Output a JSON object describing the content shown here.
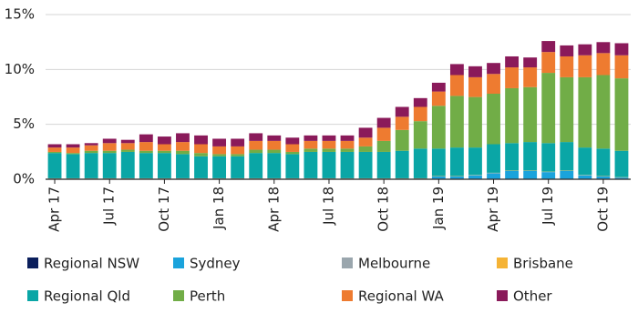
{
  "chart_data": {
    "type": "stacked_bar",
    "categories": [
      "Apr 17",
      null,
      null,
      "Jul 17",
      null,
      null,
      "Oct 17",
      null,
      null,
      "Jan 18",
      null,
      null,
      "Apr 18",
      null,
      null,
      "Jul 18",
      null,
      null,
      "Oct 18",
      null,
      null,
      "Jan 19",
      null,
      null,
      "Apr 19",
      null,
      null,
      "Jul 19",
      null,
      null,
      "Oct 19",
      null
    ],
    "ylim": [
      0,
      15
    ],
    "yticks": [
      {
        "value": 0,
        "label": "0%"
      },
      {
        "value": 5,
        "label": "5%"
      },
      {
        "value": 10,
        "label": "10%"
      },
      {
        "value": 15,
        "label": "15%"
      }
    ],
    "grid": true,
    "series": [
      {
        "name": "Regional NSW",
        "color": "#0b1f5c",
        "values": [
          0.05,
          0.05,
          0.05,
          0.05,
          0.05,
          0.05,
          0.05,
          0.05,
          0.05,
          0.05,
          0.05,
          0.05,
          0.05,
          0.05,
          0.05,
          0.05,
          0.05,
          0.05,
          0.05,
          0.05,
          0.05,
          0.05,
          0.05,
          0.05,
          0.05,
          0.05,
          0.05,
          0.05,
          0.05,
          0.05,
          0.05,
          0.05
        ]
      },
      {
        "name": "Sydney",
        "color": "#1aa3dc",
        "values": [
          0,
          0,
          0,
          0,
          0,
          0,
          0,
          0,
          0,
          0,
          0,
          0,
          0,
          0,
          0,
          0,
          0,
          0,
          0,
          0,
          0,
          0.2,
          0.2,
          0.3,
          0.5,
          0.7,
          0.7,
          0.6,
          0.7,
          0.3,
          0.2,
          0.1
        ]
      },
      {
        "name": "Melbourne",
        "color": "#9aa6ad",
        "values": [
          0.02,
          0.02,
          0.02,
          0.02,
          0.02,
          0.02,
          0.02,
          0.02,
          0.02,
          0.02,
          0.02,
          0.02,
          0.02,
          0.02,
          0.02,
          0.02,
          0.02,
          0.02,
          0.02,
          0.02,
          0.02,
          0.02,
          0.02,
          0.02,
          0.02,
          0.02,
          0.02,
          0.02,
          0.02,
          0.02,
          0.02,
          0.02
        ]
      },
      {
        "name": "Brisbane",
        "color": "#f5b335",
        "values": [
          0.02,
          0.02,
          0.02,
          0.02,
          0.02,
          0.02,
          0.02,
          0.02,
          0.02,
          0.02,
          0.02,
          0.02,
          0.02,
          0.02,
          0.02,
          0.02,
          0.02,
          0.02,
          0.02,
          0.02,
          0.02,
          0.02,
          0.02,
          0.02,
          0.02,
          0.02,
          0.02,
          0.02,
          0.02,
          0.02,
          0.02,
          0.02
        ]
      },
      {
        "name": "Regional Qld",
        "color": "#0aa6a6",
        "values": [
          2.3,
          2.2,
          2.3,
          2.3,
          2.4,
          2.3,
          2.3,
          2.2,
          2.0,
          2.0,
          2.0,
          2.3,
          2.3,
          2.2,
          2.4,
          2.4,
          2.4,
          2.4,
          2.4,
          2.5,
          2.7,
          2.5,
          2.6,
          2.5,
          2.6,
          2.5,
          2.6,
          2.6,
          2.6,
          2.5,
          2.5,
          2.4
        ]
      },
      {
        "name": "Perth",
        "color": "#71ad47",
        "values": [
          0.1,
          0.1,
          0.2,
          0.2,
          0.2,
          0.2,
          0.2,
          0.3,
          0.3,
          0.2,
          0.2,
          0.3,
          0.3,
          0.2,
          0.3,
          0.3,
          0.3,
          0.5,
          1.0,
          1.9,
          2.5,
          3.9,
          4.7,
          4.6,
          4.6,
          5.0,
          5.0,
          6.4,
          5.9,
          6.4,
          6.7,
          6.6
        ]
      },
      {
        "name": "Regional WA",
        "color": "#ee7b30",
        "values": [
          0.4,
          0.5,
          0.5,
          0.7,
          0.6,
          0.8,
          0.6,
          0.8,
          0.8,
          0.7,
          0.7,
          0.8,
          0.8,
          0.7,
          0.7,
          0.7,
          0.7,
          0.8,
          1.2,
          1.2,
          1.3,
          1.3,
          1.9,
          1.8,
          1.8,
          1.9,
          1.8,
          1.9,
          1.9,
          2.0,
          2.0,
          2.1
        ]
      },
      {
        "name": "Other",
        "color": "#8a1a5a",
        "values": [
          0.3,
          0.3,
          0.2,
          0.4,
          0.3,
          0.7,
          0.7,
          0.8,
          0.8,
          0.7,
          0.7,
          0.7,
          0.5,
          0.6,
          0.5,
          0.5,
          0.5,
          0.9,
          0.9,
          0.9,
          0.8,
          0.8,
          1.0,
          1.0,
          1.0,
          1.0,
          0.9,
          1.0,
          1.0,
          1.0,
          1.0,
          1.1
        ]
      }
    ]
  }
}
